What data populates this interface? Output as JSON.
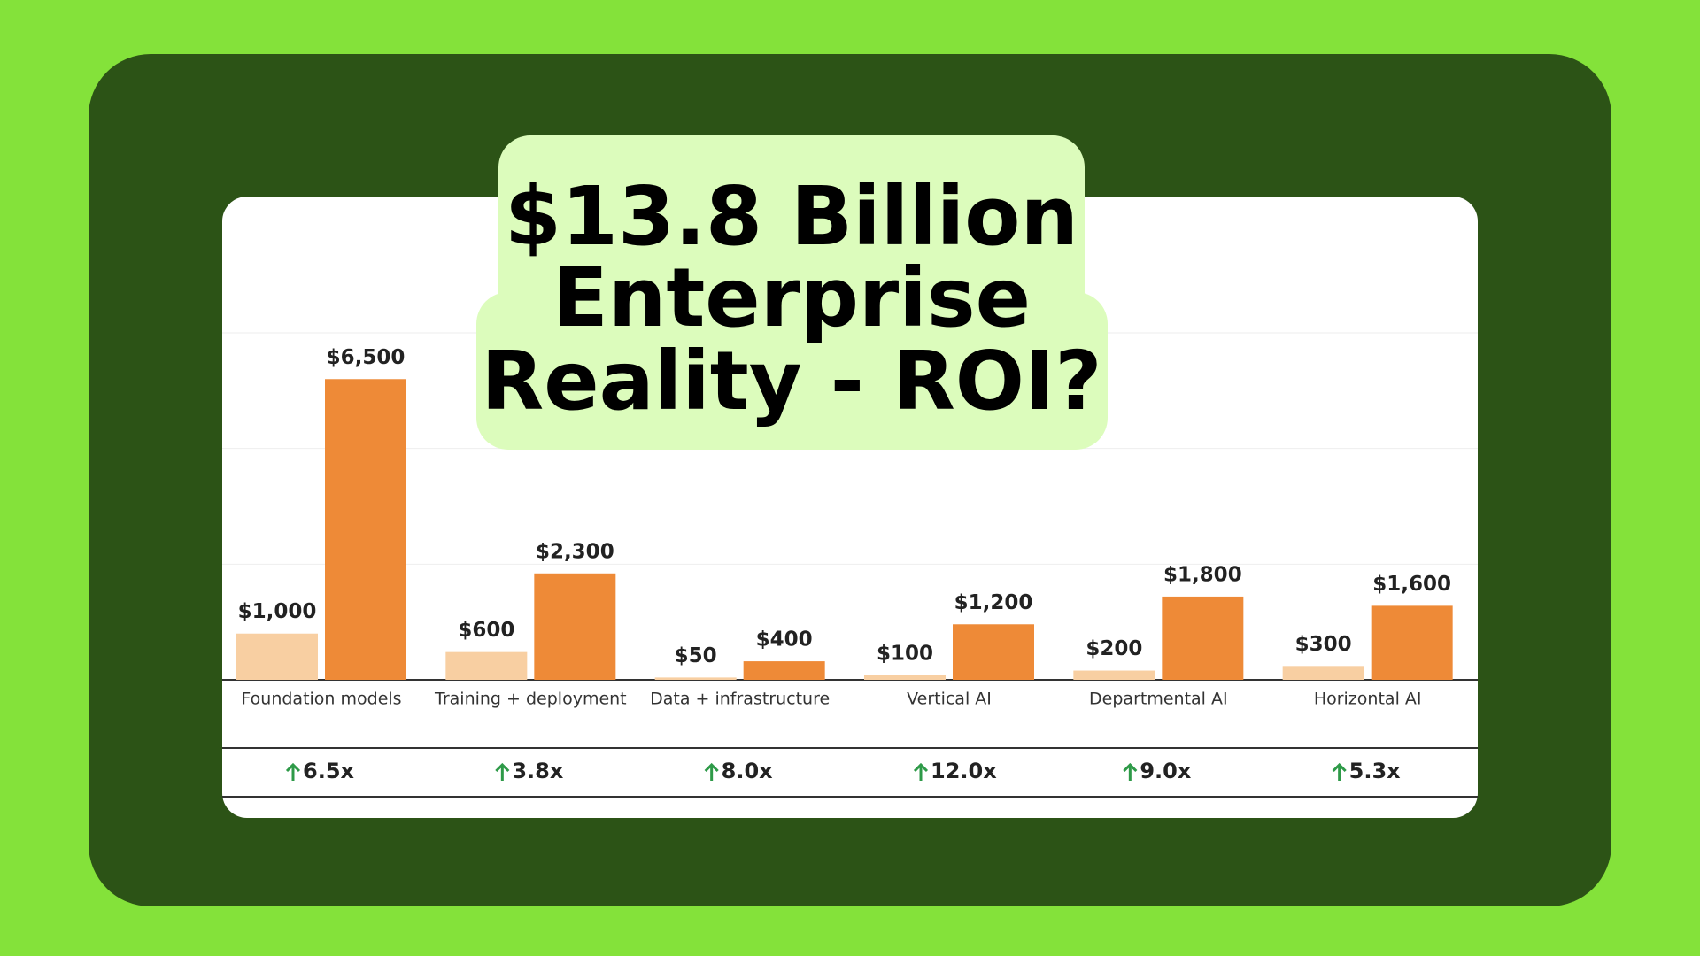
{
  "chart_data": {
    "type": "bar",
    "title_lines": [
      "$13.8 Billion",
      "Enterprise",
      "Reality - ROI?"
    ],
    "categories": [
      "Foundation models",
      "Training + deployment",
      "Data + infrastructure",
      "Vertical AI",
      "Departmental AI",
      "Horizontal AI"
    ],
    "series": [
      {
        "color": "#f8cfa2",
        "values": [
          1000,
          600,
          50,
          100,
          200,
          300
        ],
        "value_labels": [
          "$1,000",
          "$600",
          "$50",
          "$100",
          "$200",
          "$300"
        ]
      },
      {
        "color": "#ee8a37",
        "values": [
          6500,
          2300,
          400,
          1200,
          1800,
          1600
        ],
        "value_labels": [
          "$6,500",
          "$2,300",
          "$400",
          "$1,200",
          "$1,800",
          "$1,600"
        ]
      }
    ],
    "growth_labels": [
      "6.5x",
      "3.8x",
      "8.0x",
      "12.0x",
      "9.0x",
      "5.3x"
    ],
    "ylim": [
      0,
      7500
    ],
    "yticks": [
      0,
      2500,
      5000,
      7500
    ],
    "grid": true
  }
}
